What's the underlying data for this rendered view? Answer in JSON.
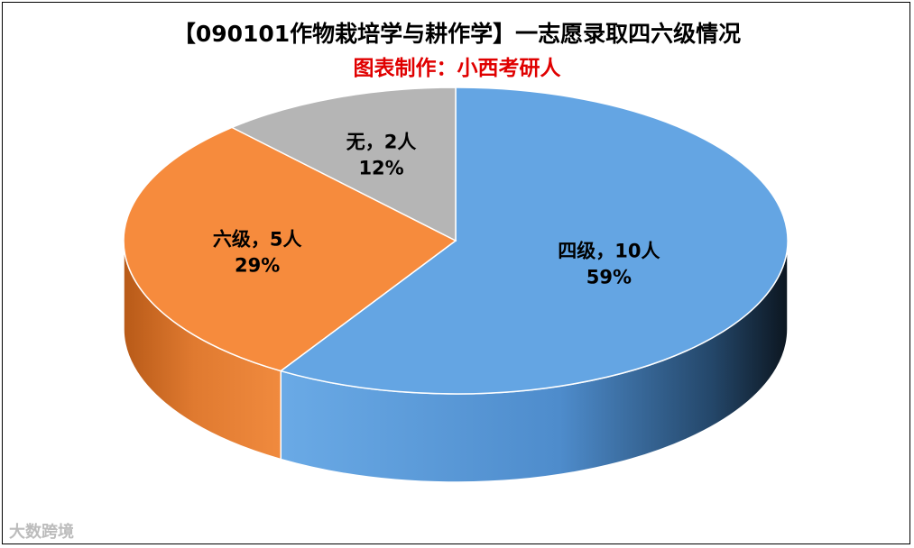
{
  "chart_data": {
    "type": "pie",
    "title": "【090101作物栽培学与耕作学】一志愿录取四六级情况",
    "subtitle": "图表制作：小西考研人",
    "slices": [
      {
        "label": "四级，10人",
        "value": 10,
        "percent": "59%",
        "color": "#64a5e3",
        "side_color": "#3a77b8"
      },
      {
        "label": "六级，5人",
        "value": 5,
        "percent": "29%",
        "color": "#f68b3d",
        "side_color": "#c86420"
      },
      {
        "label": "无，2人",
        "value": 2,
        "percent": "12%",
        "color": "#b5b5b5",
        "side_color": "#8a8a8a"
      }
    ],
    "style": "3d"
  },
  "watermark": "大数跨境"
}
